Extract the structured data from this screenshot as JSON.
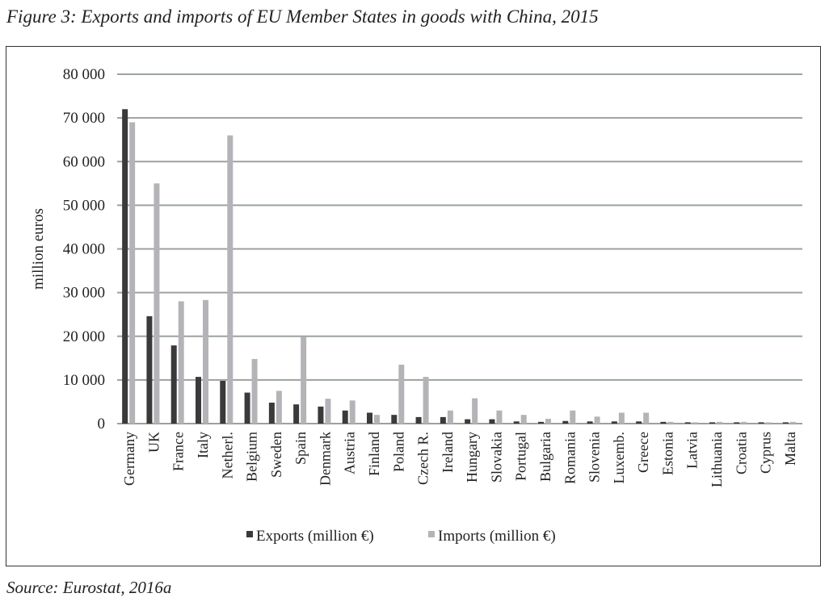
{
  "chart_data": {
    "type": "bar",
    "title": "Figure 3: Exports and imports of EU Member States in goods with China, 2015",
    "source": "Source: Eurostat, 2016a",
    "xlabel": "",
    "ylabel": "million euros",
    "ylim": [
      0,
      80000
    ],
    "yticks": [
      0,
      10000,
      20000,
      30000,
      40000,
      50000,
      60000,
      70000,
      80000
    ],
    "ytick_labels": [
      "0",
      "10 000",
      "20 000",
      "30 000",
      "40 000",
      "50 000",
      "60 000",
      "70 000",
      "80 000"
    ],
    "grid": true,
    "legend_position": "bottom",
    "categories": [
      "Germany",
      "UK",
      "France",
      "Italy",
      "Netherl.",
      "Belgium",
      "Sweden",
      "Spain",
      "Denmark",
      "Austria",
      "Finland",
      "Poland",
      "Czech R.",
      "Ireland",
      "Hungary",
      "Slovakia",
      "Portugal",
      "Bulgaria",
      "Romania",
      "Slovenia",
      "Luxemb.",
      "Greece",
      "Estonia",
      "Latvia",
      "Lithuania",
      "Croatia",
      "Cyprus",
      "Malta"
    ],
    "series": [
      {
        "name": "Exports (million €)",
        "color": "#3a3a3a",
        "values": [
          72000,
          24600,
          17900,
          10700,
          9800,
          7100,
          4800,
          4400,
          3900,
          3000,
          2500,
          2000,
          1500,
          1500,
          1000,
          1000,
          500,
          400,
          600,
          500,
          500,
          500,
          400,
          300,
          300,
          300,
          300,
          300
        ]
      },
      {
        "name": "Imports (million €)",
        "color": "#b4b4b8",
        "values": [
          69000,
          55000,
          28000,
          28300,
          66000,
          14800,
          7500,
          19900,
          5700,
          5300,
          2000,
          13500,
          10700,
          3000,
          5800,
          3000,
          2000,
          1100,
          3000,
          1600,
          2500,
          2500,
          400,
          300,
          400,
          400,
          300,
          400
        ]
      }
    ]
  }
}
